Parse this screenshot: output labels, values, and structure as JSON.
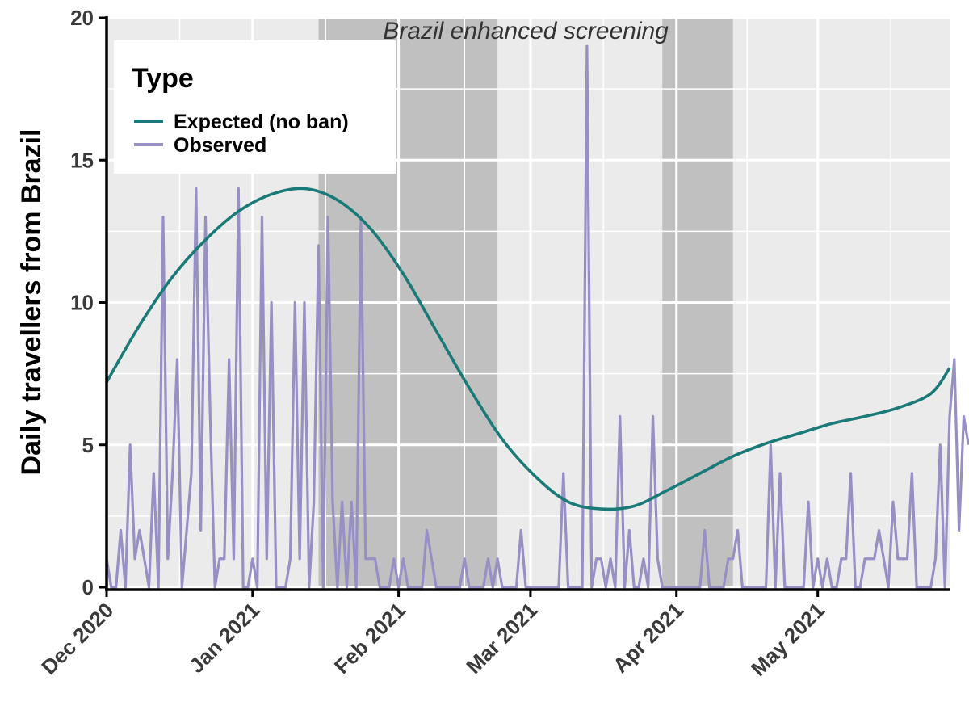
{
  "chart_data": {
    "type": "line",
    "title": "",
    "xlabel": "",
    "ylabel": "Daily travellers from Brazil",
    "ylim": [
      0,
      20
    ],
    "y_ticks": [
      0,
      5,
      10,
      15,
      20
    ],
    "xlim": [
      "2020-12-01",
      "2021-05-29"
    ],
    "x_ticks": [
      {
        "date": "2020-12-01",
        "label": "Dec 2020"
      },
      {
        "date": "2021-01-01",
        "label": "Jan 2021"
      },
      {
        "date": "2021-02-01",
        "label": "Feb 2021"
      },
      {
        "date": "2021-03-01",
        "label": "Mar 2021"
      },
      {
        "date": "2021-04-01",
        "label": "Apr 2021"
      },
      {
        "date": "2021-05-01",
        "label": "May 2021"
      }
    ],
    "grid": true,
    "legend_position": "top-left",
    "legend_title": "Type",
    "annotation": "Brazil enhanced screening",
    "shaded_periods": [
      {
        "start": "2021-01-15",
        "end": "2021-02-22"
      },
      {
        "start": "2021-03-29",
        "end": "2021-04-13"
      }
    ],
    "colors": {
      "panel": "#ebebeb",
      "grid": "#ffffff",
      "shade": "#c0c0c0",
      "expected": "#1a7a78",
      "observed": "#9690c4"
    },
    "series": [
      {
        "name": "Expected (no ban)",
        "x": [
          "2020-12-01",
          "2020-12-08",
          "2020-12-15",
          "2020-12-22",
          "2020-12-29",
          "2021-01-05",
          "2021-01-12",
          "2021-01-19",
          "2021-01-26",
          "2021-02-02",
          "2021-02-09",
          "2021-02-16",
          "2021-02-23",
          "2021-03-02",
          "2021-03-09",
          "2021-03-16",
          "2021-03-23",
          "2021-03-30",
          "2021-04-06",
          "2021-04-13",
          "2021-04-20",
          "2021-04-27",
          "2021-05-04",
          "2021-05-11",
          "2021-05-18",
          "2021-05-25",
          "2021-05-29"
        ],
        "y": [
          7.2,
          9.2,
          10.9,
          12.2,
          13.2,
          13.8,
          14.0,
          13.6,
          12.6,
          11.0,
          9.0,
          7.0,
          5.2,
          3.9,
          3.0,
          2.75,
          2.85,
          3.4,
          4.0,
          4.6,
          5.05,
          5.4,
          5.75,
          6.0,
          6.3,
          6.8,
          7.7
        ]
      },
      {
        "name": "Observed",
        "values": [
          1,
          0,
          0,
          2,
          0,
          5,
          1,
          2,
          1,
          0,
          4,
          0,
          13,
          1,
          4,
          8,
          0,
          2,
          4,
          14,
          2,
          13,
          6,
          0,
          1,
          1,
          8,
          1,
          14,
          0,
          0,
          1,
          0,
          13,
          1,
          10,
          0,
          0,
          0,
          1,
          10,
          1,
          10,
          0,
          3,
          12,
          0,
          13,
          3,
          0,
          3,
          0,
          3,
          0,
          13,
          1,
          1,
          1,
          0,
          0,
          0,
          1,
          0,
          1,
          0,
          0,
          0,
          0,
          2,
          1,
          0,
          0,
          0,
          0,
          0,
          0,
          1,
          0,
          0,
          0,
          0,
          1,
          0,
          1,
          0,
          0,
          0,
          0,
          2,
          0,
          0,
          0,
          0,
          0,
          0,
          0,
          0,
          4,
          0,
          0,
          0,
          0,
          19,
          0,
          1,
          1,
          0,
          1,
          0,
          6,
          0,
          2,
          0,
          0,
          1,
          0,
          6,
          1,
          0,
          0,
          0,
          0,
          0,
          0,
          0,
          0,
          0,
          2,
          0,
          0,
          0,
          0,
          1,
          1,
          2,
          0,
          0,
          0,
          0,
          0,
          0,
          5,
          0,
          4,
          0,
          0,
          0,
          0,
          0,
          3,
          0,
          1,
          0,
          1,
          0,
          0,
          1,
          1,
          4,
          0,
          0,
          1,
          1,
          1,
          2,
          1,
          0,
          3,
          1,
          1,
          1,
          4,
          0,
          0,
          0,
          0,
          1,
          5,
          0,
          6,
          8,
          2,
          6,
          5
        ]
      }
    ]
  }
}
